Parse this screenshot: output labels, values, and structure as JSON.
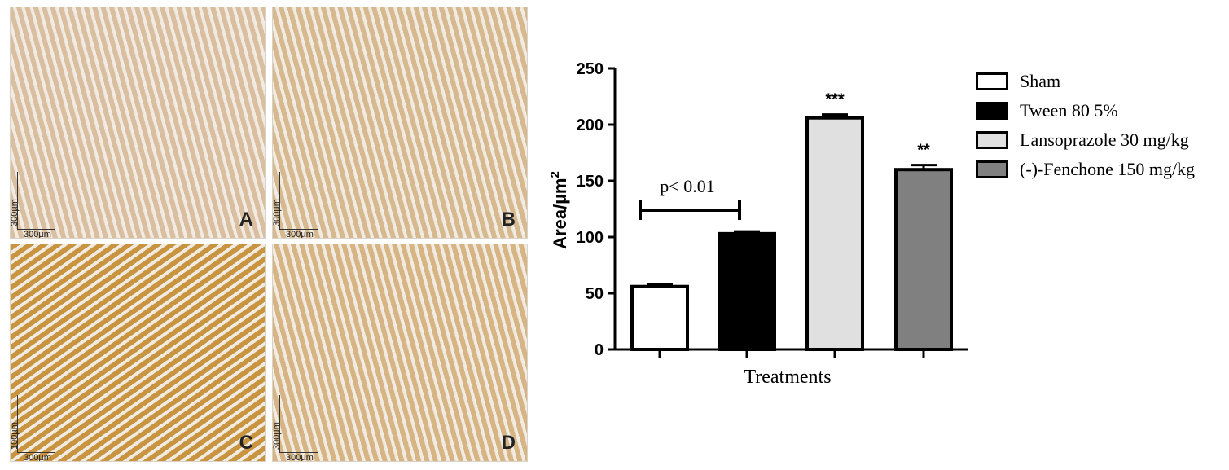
{
  "panels": [
    {
      "letter": "A",
      "scale_h": "300µm",
      "scale_v": "300µm",
      "tone": "#d9bfa0"
    },
    {
      "letter": "B",
      "scale_h": "300µm",
      "scale_v": "300µm",
      "tone": "#d7b98f"
    },
    {
      "letter": "C",
      "scale_h": "300µm",
      "scale_v": "100µm",
      "tone": "#c9943f"
    },
    {
      "letter": "D",
      "scale_h": "300µm",
      "scale_v": "300µm",
      "tone": "#d6b484"
    }
  ],
  "chart_data": {
    "type": "bar",
    "categories": [
      "Sham",
      "Tween 80 5%",
      "Lansoprazole 30 mg/kg",
      "(-)-Fenchone 150 mg/kg"
    ],
    "values": [
      56,
      103,
      206,
      160
    ],
    "errors": [
      2,
      2,
      3,
      4
    ],
    "colors": [
      "#ffffff",
      "#000000",
      "#e0e0e0",
      "#808080"
    ],
    "significance": [
      "",
      "",
      "***",
      "**"
    ],
    "bracket_label": "p< 0.01",
    "xlabel": "Treatments",
    "ylabel": "Area/µm",
    "ylabel_sup": "2",
    "ylim": [
      0,
      250
    ],
    "yticks": [
      0,
      50,
      100,
      150,
      200,
      250
    ],
    "legend_position": "right"
  }
}
